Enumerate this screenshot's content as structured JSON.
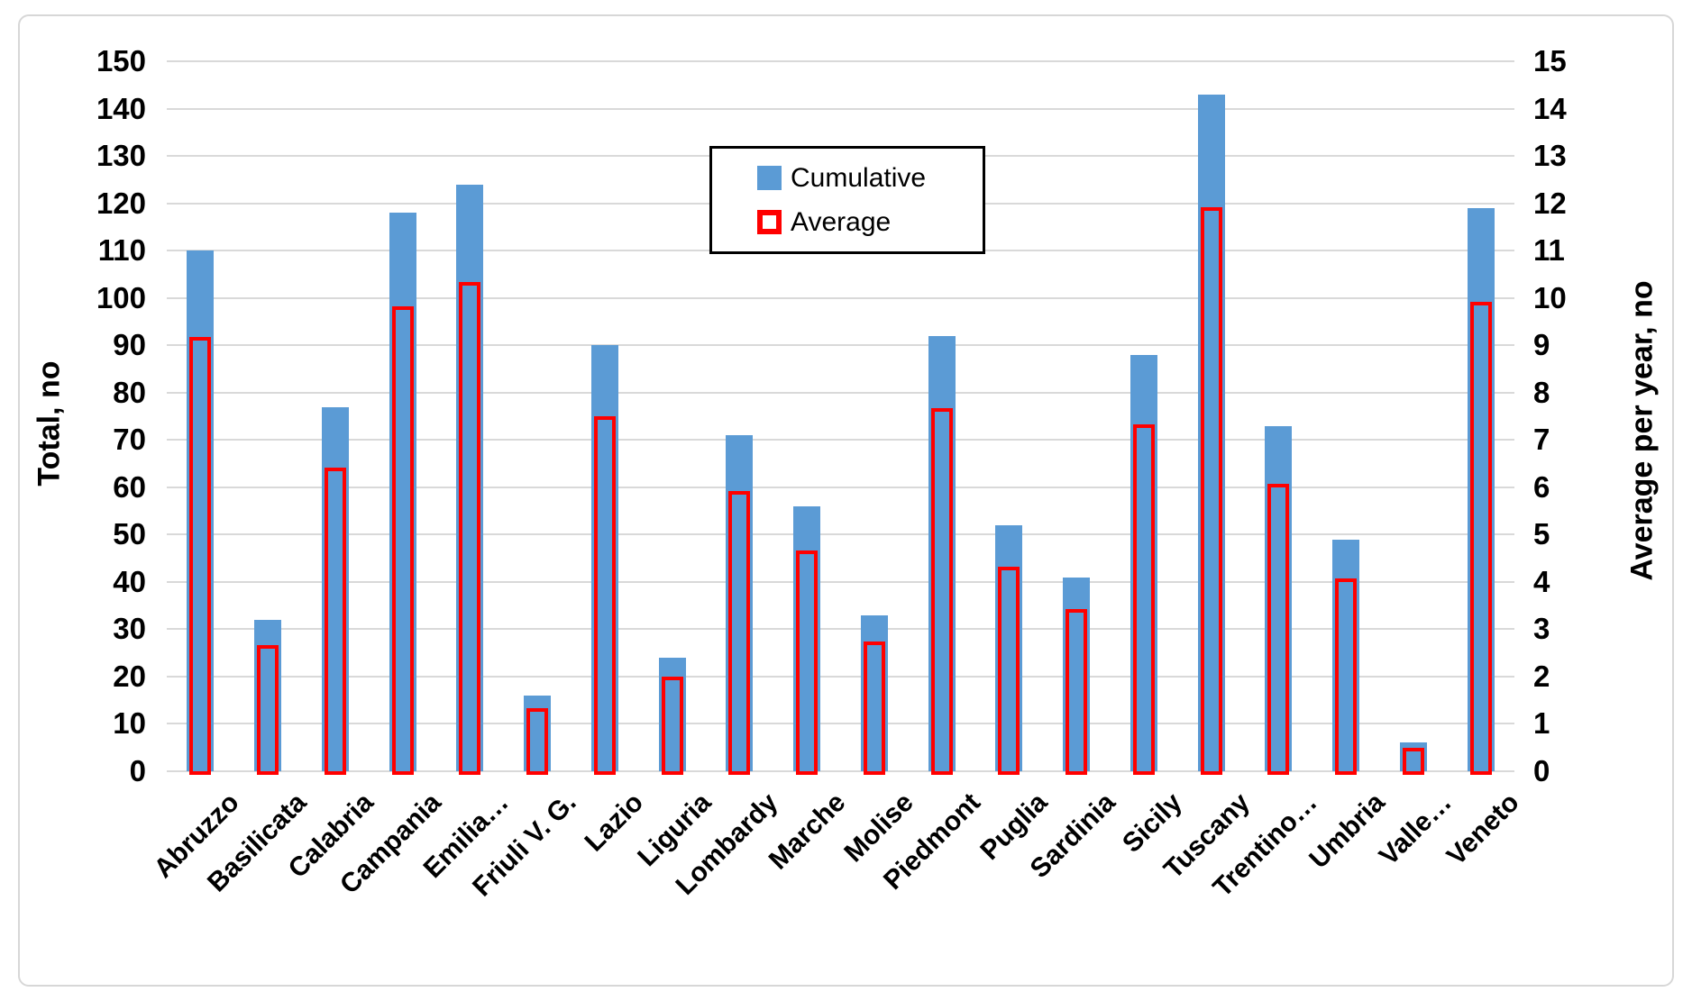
{
  "chart_data": {
    "type": "bar",
    "title": "",
    "categories": [
      "Abruzzo",
      "Basilicata",
      "Calabria",
      "Campania",
      "Emilia…",
      "Friuli V. G.",
      "Lazio",
      "Liguria",
      "Lombardy",
      "Marche",
      "Molise",
      "Piedmont",
      "Puglia",
      "Sardinia",
      "Sicily",
      "Tuscany",
      "Trentino…",
      "Umbria",
      "Valle…",
      "Veneto"
    ],
    "series": [
      {
        "name": "Cumulative",
        "axis": "left",
        "style": "filled",
        "color": "#5b9bd5",
        "values": [
          110,
          32,
          77,
          118,
          124,
          16,
          90,
          24,
          71,
          56,
          33,
          92,
          52,
          41,
          88,
          143,
          73,
          49,
          6,
          119
        ]
      },
      {
        "name": "Average",
        "axis": "right",
        "style": "outline",
        "color": "#ff0000",
        "values": [
          9.17,
          2.67,
          6.42,
          9.83,
          10.33,
          1.33,
          7.5,
          2.0,
          5.92,
          4.67,
          2.75,
          7.67,
          4.33,
          3.42,
          7.33,
          11.92,
          6.08,
          4.08,
          0.5,
          9.92
        ]
      }
    ],
    "left_axis": {
      "label": "Total, no",
      "min": 0,
      "max": 150,
      "step": 10
    },
    "right_axis": {
      "label": "Average per year, no",
      "min": 0,
      "max": 15,
      "step": 1
    },
    "legend": {
      "position": "inner-top-center",
      "entries": [
        "Cumulative",
        "Average"
      ]
    },
    "grid": true,
    "colors": {
      "cumulative": "#5b9bd5",
      "average": "#ff0000",
      "gridline": "#d9d9d9",
      "text": "#000000",
      "background": "#ffffff"
    }
  }
}
